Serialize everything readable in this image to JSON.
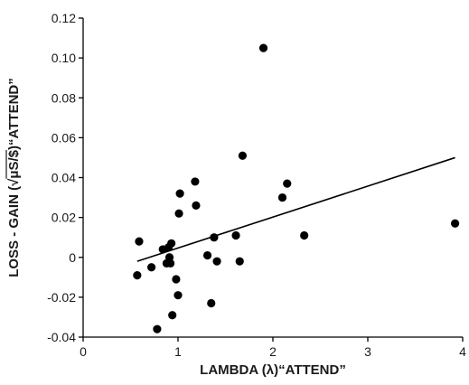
{
  "chart_data": {
    "type": "scatter",
    "title": "",
    "xlabel": "LAMBDA (λ)“ATTEND”",
    "ylabel_parts": {
      "before": "LOSS - GAIN (",
      "radical": "√",
      "radicand": "μS/$",
      "after": ")“ATTEND”"
    },
    "xlim": [
      0,
      4
    ],
    "ylim": [
      -0.04,
      0.12
    ],
    "xticks": [
      0,
      1,
      2,
      3,
      4
    ],
    "xtick_labels": [
      "0",
      "1",
      "2",
      "3",
      "4"
    ],
    "yticks": [
      -0.04,
      -0.02,
      0,
      0.02,
      0.04,
      0.06,
      0.08,
      0.1,
      0.12
    ],
    "ytick_labels": [
      "-0.04",
      "-0.02",
      "0",
      "0.02",
      "0.04",
      "0.06",
      "0.08",
      "0.10",
      "0.12"
    ],
    "grid": false,
    "legend": "none",
    "marker_color": "#000000",
    "line_color": "#000000",
    "points": [
      {
        "x": 0.57,
        "y": -0.009
      },
      {
        "x": 0.59,
        "y": 0.008
      },
      {
        "x": 0.72,
        "y": -0.005
      },
      {
        "x": 0.78,
        "y": -0.036
      },
      {
        "x": 0.84,
        "y": 0.004
      },
      {
        "x": 0.88,
        "y": -0.003
      },
      {
        "x": 0.9,
        "y": 0.005
      },
      {
        "x": 0.91,
        "y": 0.0
      },
      {
        "x": 0.92,
        "y": -0.003
      },
      {
        "x": 0.93,
        "y": 0.007
      },
      {
        "x": 0.94,
        "y": -0.029
      },
      {
        "x": 0.98,
        "y": -0.011
      },
      {
        "x": 1.0,
        "y": -0.019
      },
      {
        "x": 1.01,
        "y": 0.022
      },
      {
        "x": 1.02,
        "y": 0.032
      },
      {
        "x": 1.18,
        "y": 0.038
      },
      {
        "x": 1.19,
        "y": 0.026
      },
      {
        "x": 1.31,
        "y": 0.001
      },
      {
        "x": 1.35,
        "y": -0.023
      },
      {
        "x": 1.38,
        "y": 0.01
      },
      {
        "x": 1.41,
        "y": -0.002
      },
      {
        "x": 1.61,
        "y": 0.011
      },
      {
        "x": 1.65,
        "y": -0.002
      },
      {
        "x": 1.68,
        "y": 0.051
      },
      {
        "x": 1.9,
        "y": 0.105
      },
      {
        "x": 2.1,
        "y": 0.03
      },
      {
        "x": 2.15,
        "y": 0.037
      },
      {
        "x": 2.33,
        "y": 0.011
      },
      {
        "x": 3.92,
        "y": 0.017
      }
    ],
    "trendline": {
      "x": [
        0.57,
        3.92
      ],
      "y": [
        -0.002,
        0.05
      ]
    }
  }
}
